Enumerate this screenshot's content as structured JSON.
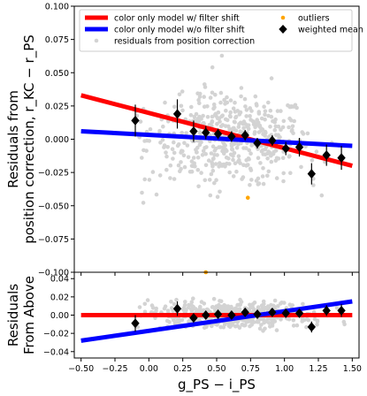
{
  "chart_data": [
    {
      "type": "scatter",
      "panel": "top",
      "title": "",
      "xlabel": "",
      "ylabel_lines": [
        "Residuals from",
        "position correction, r_KC − r_PS"
      ],
      "ylabel_plain": "Residuals from position correction, r_KC − r_PS",
      "xlim": [
        -0.55,
        1.55
      ],
      "ylim": [
        -0.1,
        0.1
      ],
      "yticks": [
        -0.1,
        -0.075,
        -0.05,
        -0.025,
        0.0,
        0.025,
        0.05,
        0.075,
        0.1
      ],
      "ytick_labels": [
        "−0.100",
        "−0.075",
        "−0.050",
        "−0.025",
        "0.000",
        "0.025",
        "0.050",
        "0.075",
        "0.100"
      ],
      "grid": false,
      "legend": {
        "position": "top",
        "entries": [
          {
            "label": "color only model w/ filter shift",
            "type": "line",
            "color": "#ff0000"
          },
          {
            "label": "color only model w/o filter shift",
            "type": "line",
            "color": "#0000ff"
          },
          {
            "label": "residuals from position correction",
            "type": "point",
            "color": "#d3d3d3"
          },
          {
            "label": "outliers",
            "type": "point",
            "color": "#ffa500"
          },
          {
            "label": "weighted mean",
            "type": "diamond",
            "color": "#000000"
          }
        ]
      },
      "lines": [
        {
          "name": "color only model w/ filter shift",
          "color": "#ff0000",
          "x": [
            -0.5,
            1.5
          ],
          "y": [
            0.033,
            -0.02
          ]
        },
        {
          "name": "color only model w/o filter shift",
          "color": "#0000ff",
          "x": [
            -0.5,
            1.5
          ],
          "y": [
            0.006,
            -0.005
          ]
        }
      ],
      "weighted_mean": {
        "x": [
          -0.1,
          0.21,
          0.33,
          0.42,
          0.51,
          0.61,
          0.71,
          0.8,
          0.91,
          1.01,
          1.11,
          1.2,
          1.31,
          1.42
        ],
        "y": [
          0.014,
          0.019,
          0.006,
          0.005,
          0.004,
          0.002,
          0.003,
          -0.003,
          -0.001,
          -0.007,
          -0.006,
          -0.026,
          -0.012,
          -0.014
        ],
        "yerr": [
          0.012,
          0.011,
          0.008,
          0.005,
          0.004,
          0.004,
          0.004,
          0.004,
          0.004,
          0.005,
          0.007,
          0.008,
          0.008,
          0.009
        ]
      },
      "outliers": {
        "x": [
          0.73,
          0.42
        ],
        "y": [
          -0.044,
          -0.1
        ]
      },
      "cloud": {
        "count": 500,
        "x_range": [
          -0.1,
          1.48
        ],
        "y_center": 0.0,
        "y_spread": 0.03,
        "color": "#d3d3d3"
      }
    },
    {
      "type": "scatter",
      "panel": "bottom",
      "title": "",
      "xlabel": "g_PS − i_PS",
      "ylabel_lines": [
        "Residuals",
        "From Above"
      ],
      "ylabel_plain": "Residuals From Above",
      "xlim": [
        -0.55,
        1.55
      ],
      "ylim": [
        -0.047,
        0.047
      ],
      "xticks": [
        -0.5,
        -0.25,
        0.0,
        0.25,
        0.5,
        0.75,
        1.0,
        1.25,
        1.5
      ],
      "xtick_labels": [
        "−0.50",
        "−0.25",
        "0.00",
        "0.25",
        "0.50",
        "0.75",
        "1.00",
        "1.25",
        "1.50"
      ],
      "yticks": [
        -0.04,
        -0.02,
        0.0,
        0.02,
        0.04
      ],
      "ytick_labels": [
        "−0.04",
        "−0.02",
        "0.00",
        "0.02",
        "0.04"
      ],
      "grid": false,
      "lines": [
        {
          "name": "color only model w/ filter shift",
          "color": "#ff0000",
          "x": [
            -0.5,
            1.5
          ],
          "y": [
            0.0,
            0.0
          ]
        },
        {
          "name": "color only model w/o filter shift",
          "color": "#0000ff",
          "x": [
            -0.5,
            1.5
          ],
          "y": [
            -0.028,
            0.015
          ]
        }
      ],
      "weighted_mean": {
        "x": [
          -0.1,
          0.21,
          0.33,
          0.42,
          0.51,
          0.61,
          0.71,
          0.8,
          0.91,
          1.01,
          1.11,
          1.2,
          1.31,
          1.42
        ],
        "y": [
          -0.009,
          0.007,
          -0.003,
          0.0,
          0.001,
          0.0,
          0.003,
          0.001,
          0.003,
          0.002,
          0.002,
          -0.013,
          0.005,
          0.005
        ],
        "yerr": [
          0.009,
          0.008,
          0.005,
          0.004,
          0.003,
          0.003,
          0.003,
          0.003,
          0.003,
          0.003,
          0.004,
          0.006,
          0.006,
          0.007
        ]
      },
      "cloud": {
        "count": 500,
        "x_range": [
          -0.1,
          1.48
        ],
        "y_center": 0.0,
        "y_spread": 0.012,
        "color": "#d3d3d3"
      }
    }
  ]
}
